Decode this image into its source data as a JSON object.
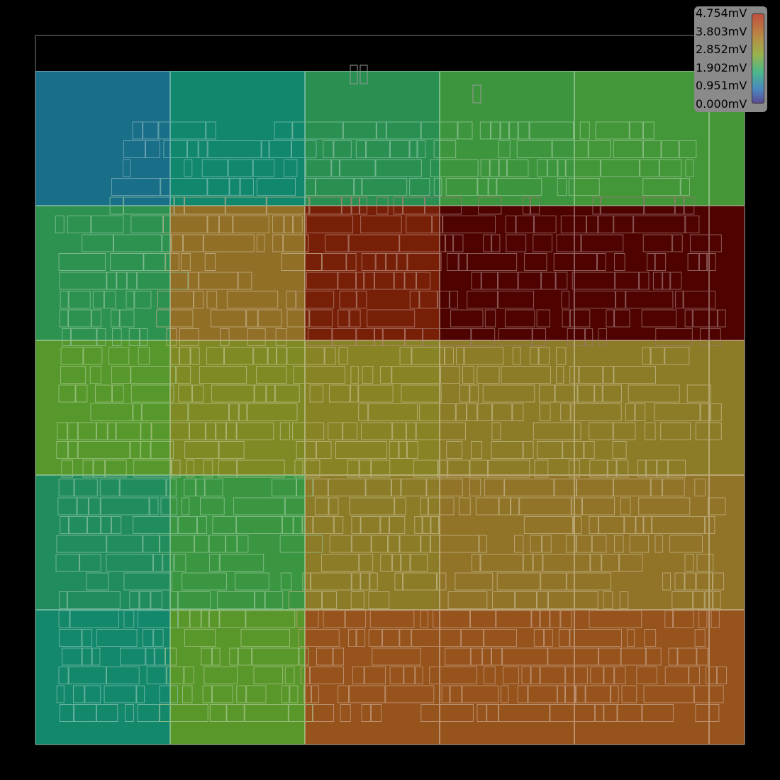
{
  "chart_data": {
    "type": "heatmap",
    "unit": "mV",
    "rows": 5,
    "cols": 6,
    "values": [
      [
        0.45,
        1.25,
        1.7,
        2.05,
        2.15,
        2.2
      ],
      [
        1.75,
        3.4,
        4.2,
        4.7,
        4.7,
        4.7
      ],
      [
        2.45,
        2.9,
        3.05,
        3.2,
        3.2,
        3.2
      ],
      [
        1.55,
        2.0,
        3.2,
        3.35,
        3.35,
        3.35
      ],
      [
        1.3,
        2.5,
        3.7,
        3.7,
        3.7,
        3.7
      ]
    ],
    "colorbar": {
      "min": 0.0,
      "max": 4.754,
      "tick_labels": [
        "4.754mV",
        "3.803mV",
        "2.852mV",
        "1.902mV",
        "0.951mV",
        "0.000mV"
      ],
      "placement": "top-right"
    },
    "colors": {
      "background": "#000000",
      "outline": "#808080"
    }
  }
}
